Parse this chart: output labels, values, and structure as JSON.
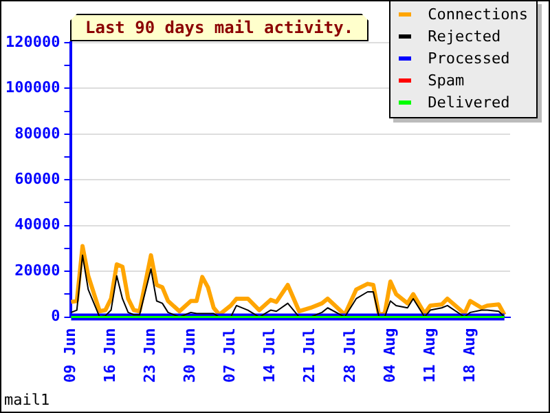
{
  "chart_data": {
    "type": "line",
    "title": "Last 90 days mail activity.",
    "x": [
      "--06-09",
      "--06-10",
      "--06-11",
      "--06-12",
      "--06-14",
      "--06-15",
      "--06-16",
      "--06-17",
      "--06-18",
      "--06-19",
      "--06-20",
      "--06-21",
      "--06-23",
      "--06-24",
      "--06-25",
      "--06-26",
      "--06-28",
      "--06-30",
      "--07-01",
      "--07-02",
      "--07-03",
      "--07-04",
      "--07-05",
      "--07-07",
      "--07-08",
      "--07-10",
      "--07-12",
      "--07-14",
      "--07-15",
      "--07-17",
      "--07-19",
      "--07-21",
      "--07-23",
      "--07-24",
      "--07-27",
      "--07-29",
      "--07-31",
      "--08-01",
      "--08-02",
      "--08-03",
      "--08-04",
      "--08-05",
      "--08-07",
      "--08-08",
      "--08-10",
      "--08-11",
      "--08-13",
      "--08-14",
      "--08-17",
      "--08-18",
      "--08-20",
      "--08-21",
      "--08-23",
      "--08-24"
    ],
    "series": [
      {
        "name": "Connections",
        "color": "#ffa500",
        "values": [
          6600,
          7000,
          31000,
          18000,
          2500,
          3000,
          8000,
          23000,
          22000,
          8000,
          3000,
          2500,
          27000,
          14000,
          13000,
          7000,
          2500,
          7000,
          7000,
          17500,
          13000,
          4000,
          1000,
          5000,
          8000,
          8000,
          3000,
          7500,
          6600,
          14000,
          2500,
          4000,
          6000,
          8000,
          1000,
          12000,
          14500,
          14000,
          1000,
          1500,
          15500,
          10000,
          6000,
          10000,
          1500,
          5000,
          5500,
          8000,
          1500,
          7000,
          4000,
          5000,
          5500,
          1000
        ]
      },
      {
        "name": "Rejected",
        "color": "#000000",
        "values": [
          2000,
          3000,
          27000,
          12000,
          0,
          500,
          3000,
          18000,
          8000,
          2000,
          1000,
          1000,
          21000,
          7000,
          6000,
          2000,
          0,
          2000,
          1500,
          1500,
          1500,
          1500,
          0,
          0,
          5000,
          3000,
          0,
          3000,
          2500,
          6000,
          0,
          0,
          2000,
          4000,
          0,
          8000,
          11000,
          11000,
          0,
          0,
          7000,
          5000,
          4000,
          8000,
          0,
          3000,
          4000,
          5000,
          0,
          2000,
          3000,
          3000,
          2500,
          0
        ]
      },
      {
        "name": "Processed",
        "color": "#0000ff",
        "values": [
          0,
          0,
          0,
          0,
          0,
          0,
          0,
          0,
          0,
          0,
          0,
          0,
          0,
          0,
          0,
          0,
          0,
          0,
          0,
          0,
          0,
          0,
          0,
          0,
          0,
          0,
          0,
          0,
          0,
          0,
          0,
          0,
          0,
          0,
          0,
          0,
          0,
          0,
          0,
          0,
          0,
          0,
          0,
          0,
          0,
          0,
          0,
          0,
          0,
          0,
          0,
          0,
          0,
          0
        ]
      },
      {
        "name": "Spam",
        "color": "#ff0000",
        "values": [
          null,
          null,
          null,
          null,
          null,
          null,
          null,
          null,
          null,
          null,
          null,
          null,
          null,
          null,
          null,
          null,
          null,
          null,
          null,
          null,
          null,
          null,
          null,
          null,
          null,
          null,
          null,
          null,
          null,
          null,
          null,
          null,
          null,
          null,
          null,
          null,
          null,
          null,
          null,
          null,
          null,
          null,
          null,
          null,
          null,
          null,
          null,
          null,
          null,
          null,
          null,
          null,
          null,
          null
        ]
      },
      {
        "name": "Delivered",
        "color": "#00ff00",
        "values": [
          0,
          0,
          0,
          0,
          0,
          0,
          0,
          0,
          0,
          0,
          0,
          0,
          0,
          0,
          0,
          0,
          0,
          0,
          0,
          0,
          0,
          0,
          0,
          0,
          0,
          0,
          0,
          0,
          0,
          0,
          0,
          0,
          0,
          0,
          0,
          0,
          0,
          0,
          0,
          0,
          0,
          0,
          0,
          0,
          0,
          0,
          0,
          0,
          0,
          0,
          0,
          0,
          0,
          0
        ]
      }
    ],
    "xlim": [
      "--06-09",
      "--08-25"
    ],
    "xticks": [
      {
        "value": "--06-09",
        "label": "09 Jun"
      },
      {
        "value": "--06-16",
        "label": "16 Jun"
      },
      {
        "value": "--06-23",
        "label": "23 Jun"
      },
      {
        "value": "--06-30",
        "label": "30 Jun"
      },
      {
        "value": "--07-07",
        "label": "07 Jul"
      },
      {
        "value": "--07-14",
        "label": "14 Jul"
      },
      {
        "value": "--07-21",
        "label": "21 Jul"
      },
      {
        "value": "--07-28",
        "label": "28 Jul"
      },
      {
        "value": "--08-04",
        "label": "04 Aug"
      },
      {
        "value": "--08-11",
        "label": "11 Aug"
      },
      {
        "value": "--08-18",
        "label": "18 Aug"
      }
    ],
    "ylim": [
      0,
      120000
    ],
    "yticks": [
      0,
      {
        "value": 10000,
        "label": null
      },
      20000,
      {
        "value": 30000,
        "label": null
      },
      40000,
      {
        "value": 50000,
        "label": null
      },
      60000,
      {
        "value": 70000,
        "label": null
      },
      80000,
      {
        "value": 90000,
        "label": null
      },
      100000,
      {
        "value": 110000,
        "label": null
      },
      120000
    ],
    "grid": "y",
    "legend": "top right",
    "marker": "none",
    "annotations": [
      "mail1"
    ]
  }
}
